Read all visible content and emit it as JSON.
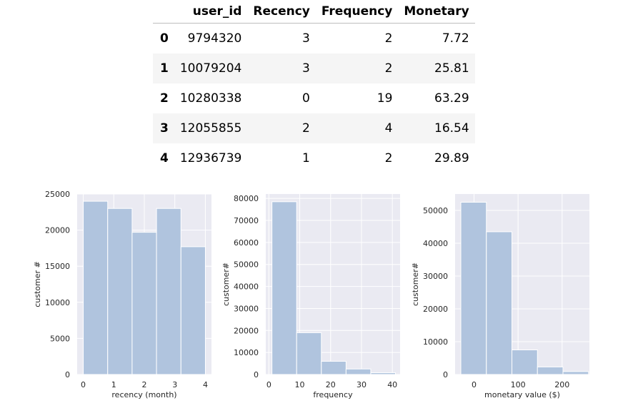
{
  "table": {
    "columns": [
      "",
      "user_id",
      "Recency",
      "Frequency",
      "Monetary"
    ],
    "rows": [
      [
        "0",
        "9794320",
        "3",
        "2",
        "7.72"
      ],
      [
        "1",
        "10079204",
        "3",
        "2",
        "25.81"
      ],
      [
        "2",
        "10280338",
        "0",
        "19",
        "63.29"
      ],
      [
        "3",
        "12055855",
        "2",
        "4",
        "16.54"
      ],
      [
        "4",
        "12936739",
        "1",
        "2",
        "29.89"
      ]
    ]
  },
  "colors": {
    "bar": "#b0c4de",
    "plot_background": "#eaeaf2",
    "grid": "#ffffff"
  },
  "chart_data": [
    {
      "type": "histogram",
      "title": "",
      "xlabel": "recency (month)",
      "ylabel": "customer #",
      "xlim": [
        -0.2,
        4.2
      ],
      "ylim": [
        0,
        25000
      ],
      "xticks": [
        0,
        1,
        2,
        3,
        4
      ],
      "yticks": [
        0,
        5000,
        10000,
        15000,
        20000,
        25000
      ],
      "bins": [
        [
          0,
          0.8
        ],
        [
          0.8,
          1.6
        ],
        [
          1.6,
          2.4
        ],
        [
          2.4,
          3.2
        ],
        [
          3.2,
          4.0
        ]
      ],
      "values": [
        24000,
        23000,
        19700,
        23000,
        17700
      ],
      "grid": true
    },
    {
      "type": "histogram",
      "title": "",
      "xlabel": "frequency",
      "ylabel": "customer#",
      "xlim": [
        -1,
        42.5
      ],
      "ylim": [
        0,
        82000
      ],
      "xticks": [
        0,
        10,
        20,
        30,
        40
      ],
      "yticks": [
        0,
        10000,
        20000,
        30000,
        40000,
        50000,
        60000,
        70000,
        80000
      ],
      "bins": [
        [
          1,
          9
        ],
        [
          9,
          17
        ],
        [
          17,
          25
        ],
        [
          25,
          33
        ],
        [
          33,
          41
        ]
      ],
      "values": [
        78500,
        19000,
        6000,
        2500,
        800
      ],
      "grid": true
    },
    {
      "type": "histogram",
      "title": "",
      "xlabel": "monetary value ($)",
      "ylabel": "customer#",
      "xlim": [
        -43,
        262
      ],
      "ylim": [
        0,
        55000
      ],
      "xticks": [
        0,
        100,
        200
      ],
      "yticks": [
        0,
        10000,
        20000,
        30000,
        40000,
        50000
      ],
      "bins": [
        [
          -30,
          28
        ],
        [
          28,
          86
        ],
        [
          86,
          144
        ],
        [
          144,
          202
        ],
        [
          202,
          260
        ]
      ],
      "values": [
        52500,
        43500,
        7500,
        2300,
        900
      ],
      "grid": true
    }
  ]
}
